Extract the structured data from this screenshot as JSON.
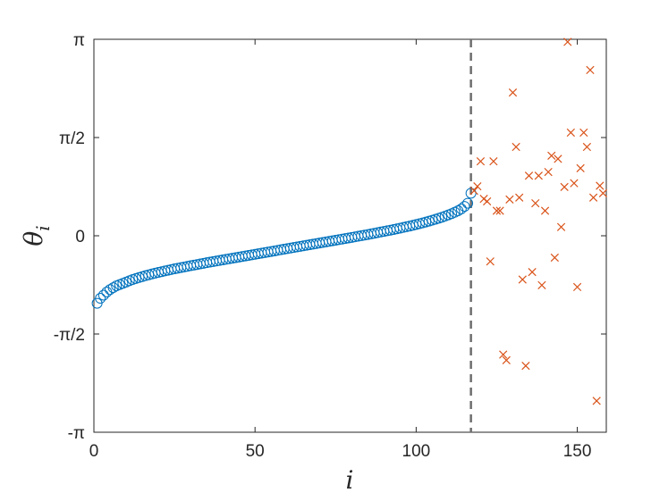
{
  "chart_data": {
    "type": "scatter",
    "xlabel": "i",
    "ylabel": "θi",
    "ylabel_main": "θ",
    "ylabel_sub": "i",
    "xlim": [
      0,
      159
    ],
    "ylim": [
      -3.14159,
      3.14159
    ],
    "x_ticks": [
      {
        "value": 0,
        "label": "0"
      },
      {
        "value": 50,
        "label": "50"
      },
      {
        "value": 100,
        "label": "100"
      },
      {
        "value": 150,
        "label": "150"
      }
    ],
    "y_ticks": [
      {
        "value": -3.14159,
        "label": "-π"
      },
      {
        "value": -1.5708,
        "label": "-π/2"
      },
      {
        "value": 0,
        "label": "0"
      },
      {
        "value": 1.5708,
        "label": "π/2"
      },
      {
        "value": 3.14159,
        "label": "π"
      }
    ],
    "grid": false,
    "divider": {
      "x": 117,
      "style": "dashed",
      "color": "#6e6e6e"
    },
    "series": [
      {
        "marker": "circle",
        "color": "#0072bd",
        "x_start": 1,
        "x_step": 1,
        "y": [
          -1.08,
          -1.0,
          -0.95,
          -0.9,
          -0.86,
          -0.83,
          -0.8,
          -0.78,
          -0.76,
          -0.74,
          -0.72,
          -0.7,
          -0.684,
          -0.668,
          -0.653,
          -0.638,
          -0.624,
          -0.611,
          -0.598,
          -0.586,
          -0.574,
          -0.562,
          -0.551,
          -0.54,
          -0.529,
          -0.519,
          -0.509,
          -0.499,
          -0.489,
          -0.479,
          -0.469,
          -0.46,
          -0.45,
          -0.441,
          -0.431,
          -0.422,
          -0.413,
          -0.404,
          -0.395,
          -0.386,
          -0.377,
          -0.368,
          -0.359,
          -0.35,
          -0.341,
          -0.332,
          -0.323,
          -0.314,
          -0.305,
          -0.296,
          -0.287,
          -0.278,
          -0.269,
          -0.26,
          -0.251,
          -0.242,
          -0.233,
          -0.224,
          -0.215,
          -0.206,
          -0.197,
          -0.188,
          -0.179,
          -0.17,
          -0.161,
          -0.152,
          -0.143,
          -0.134,
          -0.125,
          -0.116,
          -0.107,
          -0.098,
          -0.089,
          -0.08,
          -0.071,
          -0.062,
          -0.053,
          -0.044,
          -0.035,
          -0.026,
          -0.017,
          -0.008,
          0.001,
          0.01,
          0.02,
          0.03,
          0.04,
          0.05,
          0.06,
          0.07,
          0.08,
          0.09,
          0.1,
          0.111,
          0.122,
          0.133,
          0.144,
          0.156,
          0.168,
          0.18,
          0.193,
          0.206,
          0.22,
          0.234,
          0.249,
          0.264,
          0.28,
          0.297,
          0.315,
          0.334,
          0.354,
          0.376,
          0.4,
          0.43,
          0.47,
          0.52,
          0.68
        ]
      },
      {
        "marker": "x",
        "color": "#d95319",
        "points": [
          [
            118,
            0.72
          ],
          [
            119,
            0.79
          ],
          [
            120,
            1.19
          ],
          [
            121,
            0.59
          ],
          [
            122,
            0.55
          ],
          [
            123,
            -0.41
          ],
          [
            124,
            1.19
          ],
          [
            125,
            0.4
          ],
          [
            126,
            0.4
          ],
          [
            127,
            -1.9
          ],
          [
            128,
            -1.99
          ],
          [
            129,
            0.58
          ],
          [
            130,
            2.29
          ],
          [
            131,
            1.42
          ],
          [
            132,
            0.61
          ],
          [
            133,
            -0.7
          ],
          [
            134,
            -2.08
          ],
          [
            135,
            0.96
          ],
          [
            136,
            -0.58
          ],
          [
            137,
            0.52
          ],
          [
            138,
            0.96
          ],
          [
            139,
            -0.79
          ],
          [
            140,
            0.4
          ],
          [
            141,
            1.02
          ],
          [
            142,
            1.28
          ],
          [
            143,
            -0.35
          ],
          [
            144,
            1.23
          ],
          [
            145,
            0.14
          ],
          [
            146,
            0.78
          ],
          [
            147,
            3.1
          ],
          [
            148,
            1.65
          ],
          [
            149,
            0.84
          ],
          [
            150,
            -0.82
          ],
          [
            151,
            1.08
          ],
          [
            152,
            1.65
          ],
          [
            153,
            1.42
          ],
          [
            154,
            2.65
          ],
          [
            155,
            0.61
          ],
          [
            156,
            -2.64
          ],
          [
            157,
            0.8
          ],
          [
            158,
            0.68
          ]
        ]
      }
    ]
  }
}
